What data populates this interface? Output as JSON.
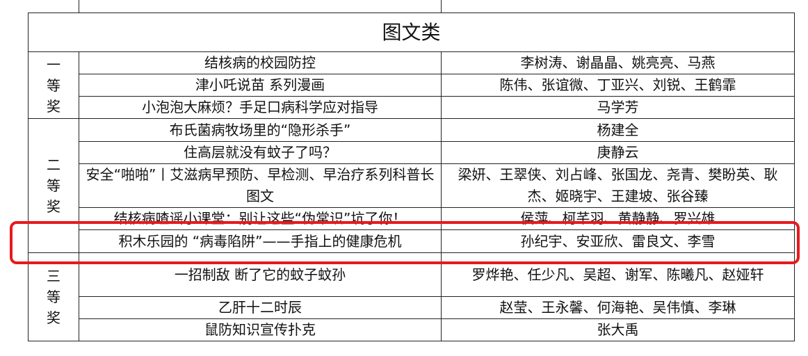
{
  "title": "图文类",
  "groups": [
    {
      "award": "一等奖",
      "rows": [
        {
          "work": "结核病的校园防控",
          "authors": "李树涛、谢晶晶、姚亮亮、马燕"
        },
        {
          "work": "津小吒说苗 系列漫画",
          "authors": "陈伟、张谊微、丁亚兴、刘锐、王鹤霏"
        },
        {
          "work": "小泡泡大麻烦？手足口病科学应对指导",
          "authors": "马学芳"
        }
      ]
    },
    {
      "award": "二等奖",
      "rows": [
        {
          "work": "布氏菌病牧场里的“隐形杀手”",
          "authors": "杨建全"
        },
        {
          "work": "住高层就没有蚊子了吗？",
          "authors": "庚静云"
        },
        {
          "work": "安全“啪啪”丨艾滋病早预防、早检测、早治疗系列科普长图文",
          "authors": "梁妍、王翠侠、刘占峰、张国龙、尧青、樊盼英、耿杰、姬晓宇、王建坡、张谷臻"
        },
        {
          "work": "结核病喳谣小课堂：别让这些“伪常识”坑了你！",
          "authors": "侯萍、柯芊羽、黄静静、罗兴雄"
        },
        {
          "work": "积木乐园的 “病毒陷阱”——手指上的健康危机",
          "authors": "孙纪宇、安亚欣、雷良文、李雪"
        }
      ]
    },
    {
      "award": "三等奖",
      "rows": [
        {
          "work": "一招制敌 断了它的蚊子蚊孙",
          "authors": "罗烨艳、任少凡、吴超、谢军、陈曦凡、赵娅轩"
        },
        {
          "work": "乙肝十二时辰",
          "authors": "赵莹、王永馨、何海艳、吴伟慎、李琳"
        },
        {
          "work": "鼠防知识宣传扑克",
          "authors": "张大禹"
        }
      ]
    }
  ]
}
